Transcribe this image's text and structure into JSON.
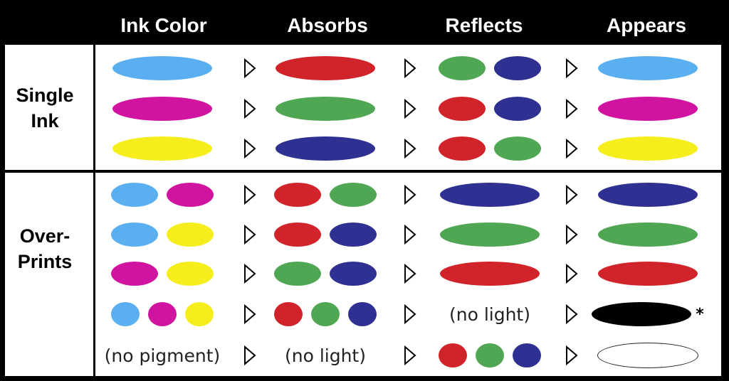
{
  "headers": [
    "Ink Color",
    "Absorbs",
    "Reflects",
    "Appears"
  ],
  "sections": [
    {
      "label": [
        "Single",
        "Ink"
      ],
      "rows": [
        {
          "ink": [
            "cyan"
          ],
          "absorbs": [
            "red"
          ],
          "reflects": [
            "green",
            "blue"
          ],
          "appears": [
            "cyan"
          ]
        },
        {
          "ink": [
            "magenta"
          ],
          "absorbs": [
            "green"
          ],
          "reflects": [
            "red",
            "blue"
          ],
          "appears": [
            "magenta"
          ]
        },
        {
          "ink": [
            "yellow"
          ],
          "absorbs": [
            "blue"
          ],
          "reflects": [
            "red",
            "green"
          ],
          "appears": [
            "yellow"
          ]
        }
      ]
    },
    {
      "label": [
        "Over-",
        "Prints"
      ],
      "rows": [
        {
          "ink": [
            "cyan",
            "magenta"
          ],
          "absorbs": [
            "red",
            "green"
          ],
          "reflects": [
            "blue"
          ],
          "appears": [
            "blue"
          ]
        },
        {
          "ink": [
            "cyan",
            "yellow"
          ],
          "absorbs": [
            "red",
            "blue"
          ],
          "reflects": [
            "green"
          ],
          "appears": [
            "green"
          ]
        },
        {
          "ink": [
            "magenta",
            "yellow"
          ],
          "absorbs": [
            "green",
            "blue"
          ],
          "reflects": [
            "red"
          ],
          "appears": [
            "red"
          ]
        },
        {
          "ink": [
            "cyan",
            "magenta",
            "yellow"
          ],
          "absorbs": [
            "red",
            "green",
            "blue"
          ],
          "reflects_text": "(no light)",
          "appears": [
            "black"
          ],
          "appears_mark": "*"
        },
        {
          "ink_text": "(no pigment)",
          "absorbs_text": "(no light)",
          "reflects": [
            "red",
            "green",
            "blue"
          ],
          "appears": [
            "white"
          ]
        }
      ]
    }
  ],
  "colors": {
    "cyan": "#5aaff0",
    "magenta": "#d0149f",
    "yellow": "#f6ee1c",
    "red": "#d1242a",
    "green": "#4fa653",
    "blue": "#2f3192",
    "black": "#000000",
    "white": "#ffffff"
  }
}
